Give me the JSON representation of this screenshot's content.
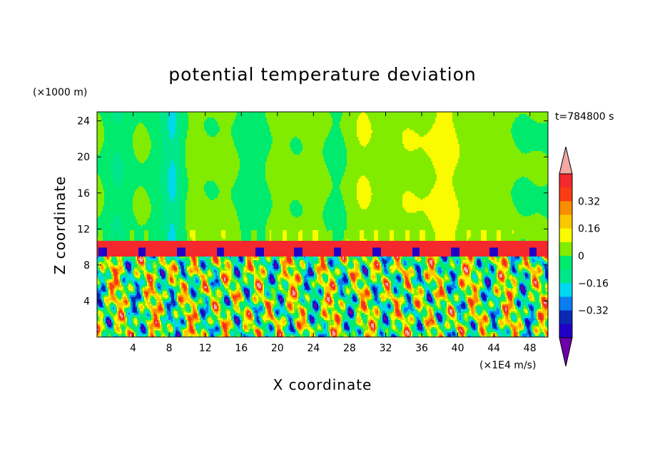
{
  "chart_data": {
    "type": "heatmap",
    "title": "potential temperature deviation",
    "xlabel": "X coordinate",
    "ylabel": "Z coordinate",
    "x_unit": "(×1E4 m/s)",
    "y_unit": "(×1000 m)",
    "time_label": "t=784800 s",
    "xlim": [
      0,
      50
    ],
    "ylim": [
      0,
      25
    ],
    "x_ticks": [
      4,
      8,
      12,
      16,
      20,
      24,
      28,
      32,
      36,
      40,
      44,
      48
    ],
    "y_ticks": [
      4,
      8,
      12,
      16,
      20,
      24
    ],
    "layers": {
      "upper": {
        "from_z": 10.8,
        "to_z": 25,
        "description_value": 0
      },
      "inversion_band": {
        "from_z": 9.0,
        "to_z": 10.8,
        "value": 0.45
      },
      "turbulent": {
        "from_z": 0,
        "to_z": 9.0
      }
    },
    "colorbar": {
      "levels": [
        -0.48,
        -0.4,
        -0.32,
        -0.24,
        -0.16,
        -0.08,
        0,
        0.08,
        0.16,
        0.24,
        0.32,
        0.4,
        0.48
      ],
      "colors": [
        "#6e00a8",
        "#2000c8",
        "#0a2ab4",
        "#0a7ef0",
        "#00d8f0",
        "#00e68a",
        "#00ea6e",
        "#82ec00",
        "#fafa00",
        "#fac800",
        "#fa8c00",
        "#fa3c14",
        "#f5282d",
        "#f4a8a4"
      ],
      "tick_labels": [
        "0.32",
        "0.16",
        "0",
        "−0.16",
        "−0.32"
      ],
      "tick_values": [
        0.32,
        0.16,
        0,
        -0.16,
        -0.32
      ]
    }
  }
}
